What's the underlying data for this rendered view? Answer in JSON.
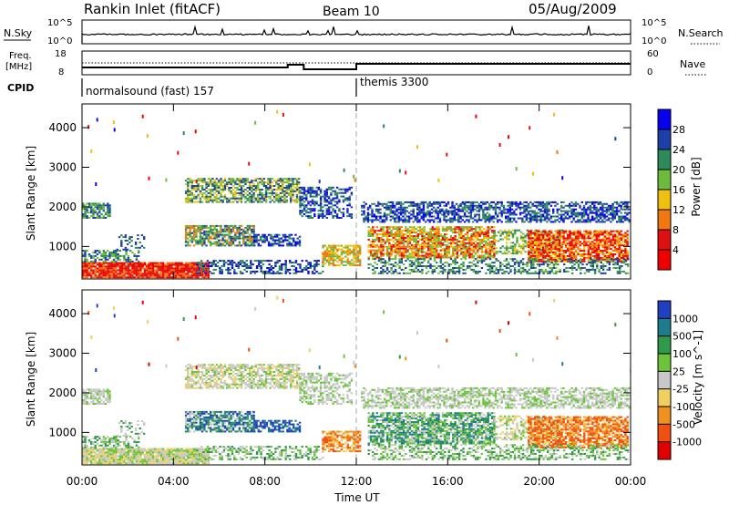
{
  "header": {
    "station": "Rankin Inlet (fitACF)",
    "beam": "Beam 10",
    "date": "05/Aug/2009"
  },
  "noise_panel": {
    "left_label": "N.Sky",
    "right_label": "N.Search",
    "left_ticks": [
      "10^5",
      "10^0"
    ],
    "right_ticks": [
      "10^5",
      "10^0"
    ]
  },
  "freq_panel": {
    "left_label_1": "Freq.",
    "left_label_2": "[MHz]",
    "right_label": "Nave",
    "left_ticks": [
      "18",
      "8"
    ],
    "right_ticks": [
      "60",
      "0"
    ]
  },
  "cpid_panel": {
    "label": "CPID",
    "modes": [
      {
        "name": "normalsound (fast) 157",
        "start_hour": 0
      },
      {
        "name": "themis 3300",
        "start_hour": 12
      }
    ]
  },
  "time_axis": {
    "label": "Time UT",
    "ticks": [
      "00:00",
      "04:00",
      "08:00",
      "12:00",
      "16:00",
      "20:00",
      "00:00"
    ],
    "tick_hours": [
      0,
      4,
      8,
      12,
      16,
      20,
      24
    ]
  },
  "chart_data": [
    {
      "type": "heatmap",
      "ylabel": "Slant Range [km]",
      "ylim": [
        180,
        4600
      ],
      "yticks": [
        "1000",
        "2000",
        "3000",
        "4000"
      ],
      "ytick_values": [
        1000,
        2000,
        3000,
        4000
      ],
      "xlim_hours": [
        0,
        24
      ],
      "colorbar_label": "Power [dB]",
      "colorbar_ticks": [
        "4",
        "8",
        "12",
        "16",
        "20",
        "24",
        "28"
      ],
      "colorbar_colors": [
        "#0a00f0",
        "#1e3ea8",
        "#2e8a5a",
        "#6dbb3c",
        "#f0c010",
        "#f07810",
        "#e01010",
        "#f00000"
      ]
    },
    {
      "type": "heatmap",
      "ylabel": "Slant Range [km]",
      "ylim": [
        180,
        4600
      ],
      "yticks": [
        "1000",
        "2000",
        "3000",
        "4000"
      ],
      "ytick_values": [
        1000,
        2000,
        3000,
        4000
      ],
      "xlim_hours": [
        0,
        24
      ],
      "colorbar_label": "Velocity [m s^-1]",
      "colorbar_ticks": [
        "1000",
        "500",
        "100",
        "25",
        "-25",
        "-100",
        "-500",
        "-1000"
      ],
      "colorbar_colors": [
        "#2040c0",
        "#1e7d8c",
        "#2e9a4a",
        "#6cc43c",
        "#c8c8c8",
        "#f0d060",
        "#f09020",
        "#f05010",
        "#e00000"
      ]
    }
  ],
  "colors": {
    "ground_scatter_gray": "#c0c0c0",
    "dashed_marker": "#aaaaaa"
  }
}
